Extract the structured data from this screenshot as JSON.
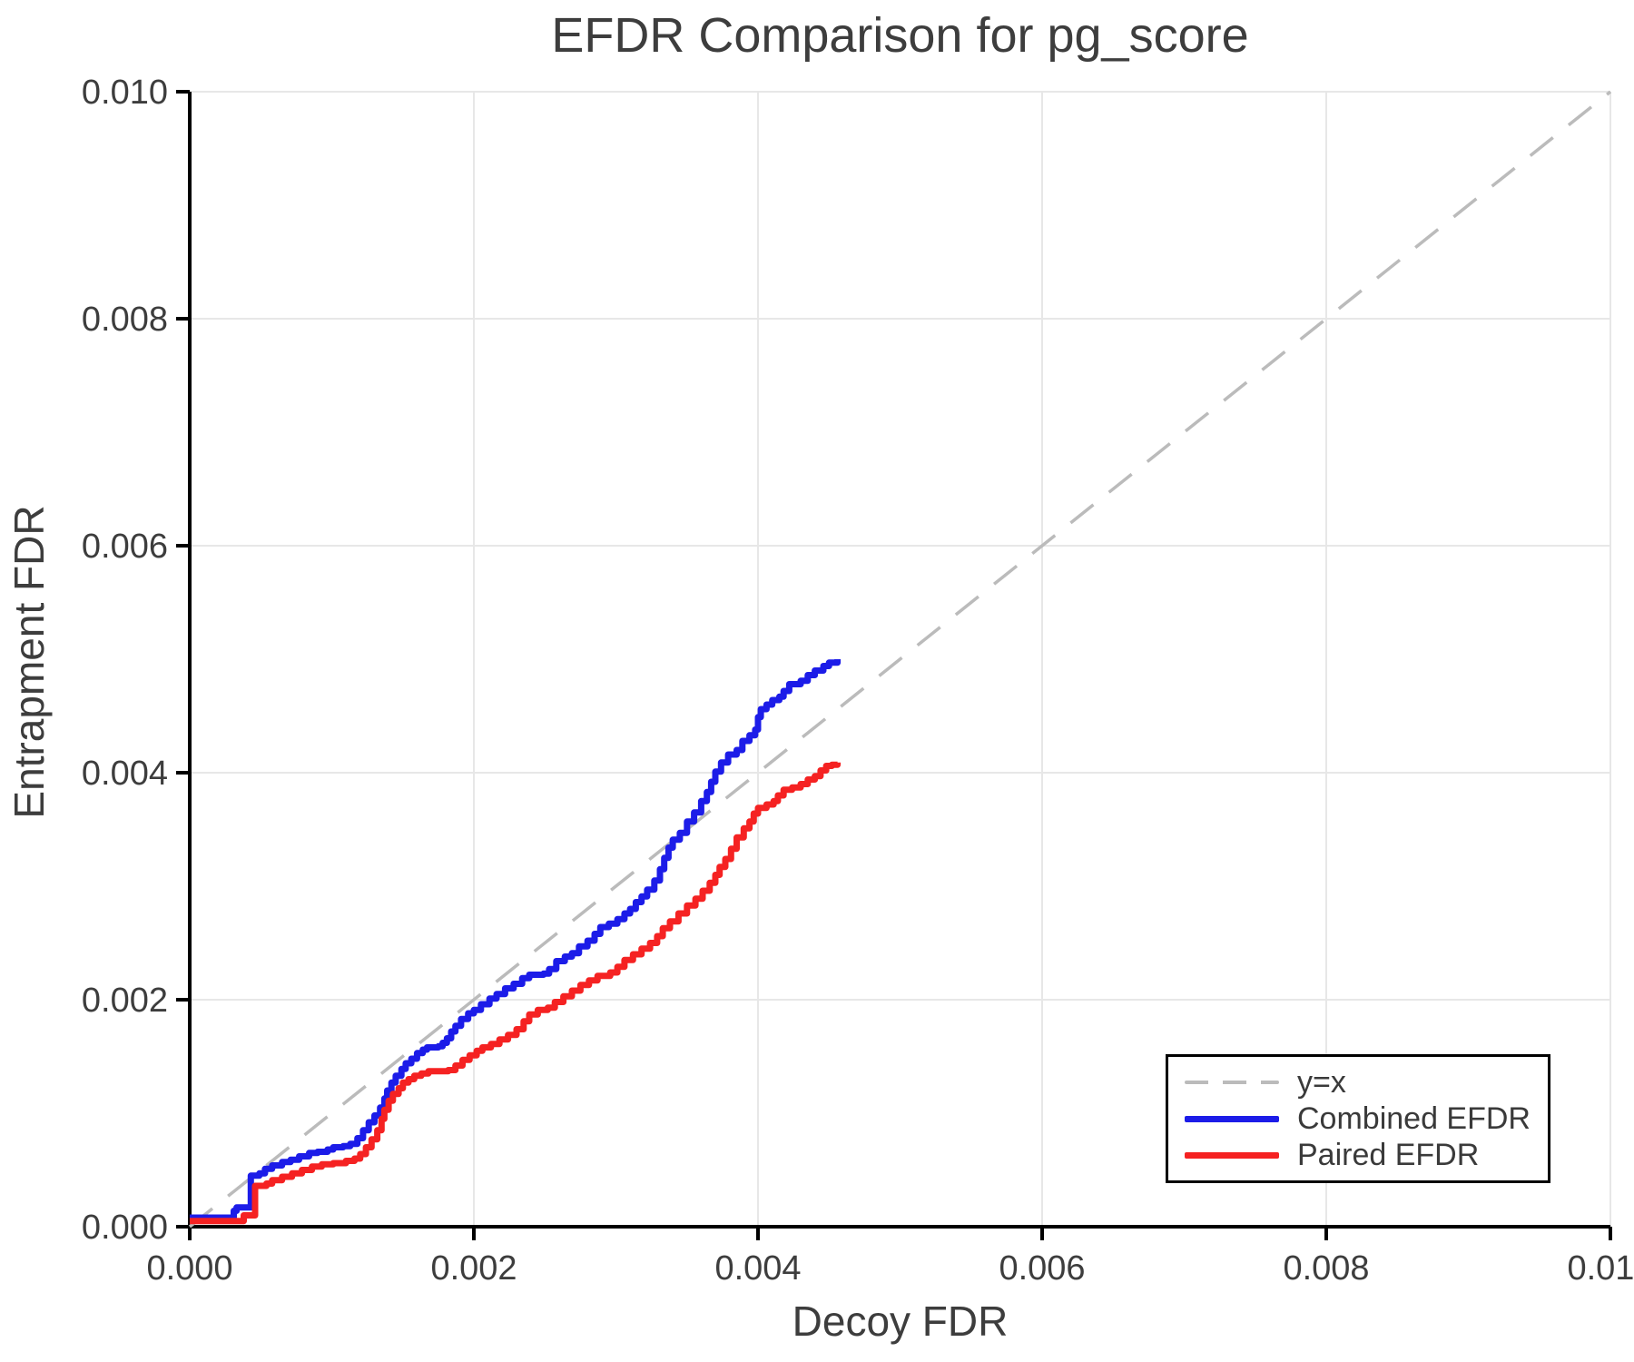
{
  "title": "EFDR Comparison for pg_score",
  "chart_data": {
    "type": "line",
    "title": "EFDR Comparison for pg_score",
    "xlabel": "Decoy FDR",
    "ylabel": "Entrapment FDR",
    "xlim": [
      0.0,
      0.01
    ],
    "ylim": [
      0.0,
      0.01
    ],
    "grid": true,
    "grid_color": "#e7e7e7",
    "axis_color": "#000000",
    "tick_label_color": "#3d3d3d",
    "xticks": [
      0.0,
      0.002,
      0.004,
      0.006,
      0.008,
      0.01
    ],
    "yticks": [
      0.0,
      0.002,
      0.004,
      0.006,
      0.008,
      0.01
    ],
    "xtick_labels": [
      "0.000",
      "0.002",
      "0.004",
      "0.006",
      "0.008",
      "0.010"
    ],
    "ytick_labels": [
      "0.000",
      "0.002",
      "0.004",
      "0.006",
      "0.008",
      "0.010"
    ],
    "legend": {
      "position": "lower right",
      "entries": [
        {
          "label": "y=x",
          "color": "#bbbbbb",
          "style": "dashed"
        },
        {
          "label": "Combined EFDR",
          "color": "#1c1ce8",
          "style": "solid"
        },
        {
          "label": "Paired EFDR",
          "color": "#f52222",
          "style": "solid"
        }
      ]
    },
    "series": [
      {
        "name": "y=x",
        "style": "dashed",
        "interpolation": "linear",
        "color": "#bbbbbb",
        "line_width": 3.5,
        "points": [
          [
            0.0,
            0.0
          ],
          [
            0.01,
            0.01
          ]
        ]
      },
      {
        "name": "Combined EFDR",
        "style": "solid",
        "interpolation": "step",
        "color": "#1c1ce8",
        "line_width": 7,
        "points": [
          [
            0.0,
            8e-05
          ],
          [
            0.0003,
            8e-05
          ],
          [
            0.00031,
            0.00014
          ],
          [
            0.00033,
            0.00017
          ],
          [
            0.00042,
            0.00017
          ],
          [
            0.00043,
            0.00045
          ],
          [
            0.00049,
            0.00047
          ],
          [
            0.00053,
            0.00051
          ],
          [
            0.00058,
            0.00054
          ],
          [
            0.00065,
            0.00057
          ],
          [
            0.00071,
            0.00059
          ],
          [
            0.00077,
            0.00062
          ],
          [
            0.00084,
            0.00065
          ],
          [
            0.0009,
            0.00066
          ],
          [
            0.00097,
            0.00068
          ],
          [
            0.00101,
            0.0007
          ],
          [
            0.00108,
            0.00071
          ],
          [
            0.00113,
            0.00073
          ],
          [
            0.00118,
            0.00078
          ],
          [
            0.00122,
            0.00085
          ],
          [
            0.00126,
            0.00092
          ],
          [
            0.0013,
            0.00098
          ],
          [
            0.00134,
            0.00105
          ],
          [
            0.00137,
            0.00113
          ],
          [
            0.00139,
            0.0012
          ],
          [
            0.00142,
            0.00127
          ],
          [
            0.00145,
            0.00133
          ],
          [
            0.00149,
            0.00139
          ],
          [
            0.00152,
            0.00144
          ],
          [
            0.00156,
            0.00148
          ],
          [
            0.0016,
            0.00153
          ],
          [
            0.00164,
            0.00156
          ],
          [
            0.00167,
            0.00158
          ],
          [
            0.00175,
            0.00159
          ],
          [
            0.00178,
            0.00162
          ],
          [
            0.00181,
            0.00166
          ],
          [
            0.00184,
            0.00172
          ],
          [
            0.00187,
            0.00177
          ],
          [
            0.00191,
            0.00183
          ],
          [
            0.00196,
            0.00188
          ],
          [
            0.002,
            0.00191
          ],
          [
            0.00205,
            0.00196
          ],
          [
            0.00211,
            0.00201
          ],
          [
            0.00216,
            0.00205
          ],
          [
            0.00222,
            0.0021
          ],
          [
            0.00228,
            0.00214
          ],
          [
            0.00234,
            0.00219
          ],
          [
            0.00239,
            0.00222
          ],
          [
            0.00249,
            0.00223
          ],
          [
            0.00253,
            0.00227
          ],
          [
            0.00258,
            0.00234
          ],
          [
            0.00264,
            0.00238
          ],
          [
            0.00269,
            0.00241
          ],
          [
            0.00274,
            0.00247
          ],
          [
            0.0028,
            0.00252
          ],
          [
            0.00285,
            0.00258
          ],
          [
            0.00289,
            0.00264
          ],
          [
            0.00295,
            0.00267
          ],
          [
            0.00301,
            0.00271
          ],
          [
            0.00306,
            0.00276
          ],
          [
            0.0031,
            0.0028
          ],
          [
            0.00314,
            0.00286
          ],
          [
            0.00318,
            0.00291
          ],
          [
            0.00322,
            0.00297
          ],
          [
            0.00327,
            0.00305
          ],
          [
            0.00331,
            0.00315
          ],
          [
            0.00334,
            0.00325
          ],
          [
            0.00337,
            0.00334
          ],
          [
            0.0034,
            0.00341
          ],
          [
            0.00345,
            0.00347
          ],
          [
            0.0035,
            0.00357
          ],
          [
            0.00355,
            0.00365
          ],
          [
            0.0036,
            0.00375
          ],
          [
            0.00364,
            0.00383
          ],
          [
            0.00367,
            0.00392
          ],
          [
            0.0037,
            0.00401
          ],
          [
            0.00374,
            0.00409
          ],
          [
            0.00379,
            0.00416
          ],
          [
            0.00385,
            0.0042
          ],
          [
            0.00389,
            0.00428
          ],
          [
            0.00394,
            0.00433
          ],
          [
            0.00398,
            0.00438
          ],
          [
            0.004,
            0.00449
          ],
          [
            0.00402,
            0.00456
          ],
          [
            0.00406,
            0.0046
          ],
          [
            0.0041,
            0.00464
          ],
          [
            0.00415,
            0.00467
          ],
          [
            0.00418,
            0.00472
          ],
          [
            0.00422,
            0.00478
          ],
          [
            0.0043,
            0.00481
          ],
          [
            0.00435,
            0.00486
          ],
          [
            0.0044,
            0.0049
          ],
          [
            0.00446,
            0.00494
          ],
          [
            0.0045,
            0.00497
          ],
          [
            0.00456,
            0.005
          ]
        ]
      },
      {
        "name": "Paired EFDR",
        "style": "solid",
        "interpolation": "step",
        "color": "#f52222",
        "line_width": 7,
        "points": [
          [
            0.0,
            5e-05
          ],
          [
            0.00036,
            5e-05
          ],
          [
            0.00038,
            0.0001
          ],
          [
            0.00044,
            0.0001
          ],
          [
            0.00046,
            0.00036
          ],
          [
            0.00054,
            0.00038
          ],
          [
            0.00058,
            0.00041
          ],
          [
            0.00065,
            0.00044
          ],
          [
            0.00072,
            0.00047
          ],
          [
            0.00079,
            0.0005
          ],
          [
            0.00086,
            0.00053
          ],
          [
            0.00093,
            0.00055
          ],
          [
            0.00101,
            0.00056
          ],
          [
            0.0011,
            0.00058
          ],
          [
            0.00116,
            0.0006
          ],
          [
            0.0012,
            0.00064
          ],
          [
            0.00124,
            0.0007
          ],
          [
            0.00128,
            0.00077
          ],
          [
            0.00132,
            0.00085
          ],
          [
            0.00135,
            0.00095
          ],
          [
            0.00137,
            0.00103
          ],
          [
            0.0014,
            0.00111
          ],
          [
            0.00143,
            0.00117
          ],
          [
            0.00147,
            0.00122
          ],
          [
            0.0015,
            0.00127
          ],
          [
            0.00154,
            0.0013
          ],
          [
            0.00158,
            0.00133
          ],
          [
            0.00163,
            0.00135
          ],
          [
            0.00168,
            0.00137
          ],
          [
            0.00182,
            0.00138
          ],
          [
            0.00187,
            0.00142
          ],
          [
            0.00192,
            0.00147
          ],
          [
            0.00197,
            0.00151
          ],
          [
            0.00202,
            0.00155
          ],
          [
            0.00206,
            0.00158
          ],
          [
            0.00212,
            0.00161
          ],
          [
            0.00218,
            0.00165
          ],
          [
            0.00224,
            0.00169
          ],
          [
            0.0023,
            0.00174
          ],
          [
            0.00235,
            0.00181
          ],
          [
            0.00239,
            0.00187
          ],
          [
            0.00245,
            0.00191
          ],
          [
            0.00252,
            0.00193
          ],
          [
            0.00257,
            0.00198
          ],
          [
            0.00263,
            0.00203
          ],
          [
            0.00269,
            0.00208
          ],
          [
            0.00275,
            0.00213
          ],
          [
            0.00281,
            0.00217
          ],
          [
            0.00287,
            0.00221
          ],
          [
            0.00296,
            0.00224
          ],
          [
            0.00301,
            0.00229
          ],
          [
            0.00306,
            0.00235
          ],
          [
            0.00312,
            0.0024
          ],
          [
            0.00318,
            0.00245
          ],
          [
            0.00324,
            0.0025
          ],
          [
            0.00329,
            0.00256
          ],
          [
            0.00333,
            0.00263
          ],
          [
            0.00338,
            0.00269
          ],
          [
            0.00344,
            0.00276
          ],
          [
            0.0035,
            0.00283
          ],
          [
            0.00356,
            0.00289
          ],
          [
            0.00361,
            0.00296
          ],
          [
            0.00366,
            0.00303
          ],
          [
            0.0037,
            0.0031
          ],
          [
            0.00373,
            0.00317
          ],
          [
            0.00377,
            0.00324
          ],
          [
            0.00381,
            0.00333
          ],
          [
            0.00385,
            0.00343
          ],
          [
            0.0039,
            0.00351
          ],
          [
            0.00394,
            0.00357
          ],
          [
            0.00397,
            0.00364
          ],
          [
            0.004,
            0.00369
          ],
          [
            0.00406,
            0.00372
          ],
          [
            0.00411,
            0.00375
          ],
          [
            0.00414,
            0.0038
          ],
          [
            0.00418,
            0.00385
          ],
          [
            0.00424,
            0.00387
          ],
          [
            0.0043,
            0.0039
          ],
          [
            0.00435,
            0.00394
          ],
          [
            0.0044,
            0.00397
          ],
          [
            0.00444,
            0.00402
          ],
          [
            0.00448,
            0.00406
          ],
          [
            0.00452,
            0.00407
          ],
          [
            0.00456,
            0.00409
          ]
        ]
      }
    ]
  }
}
